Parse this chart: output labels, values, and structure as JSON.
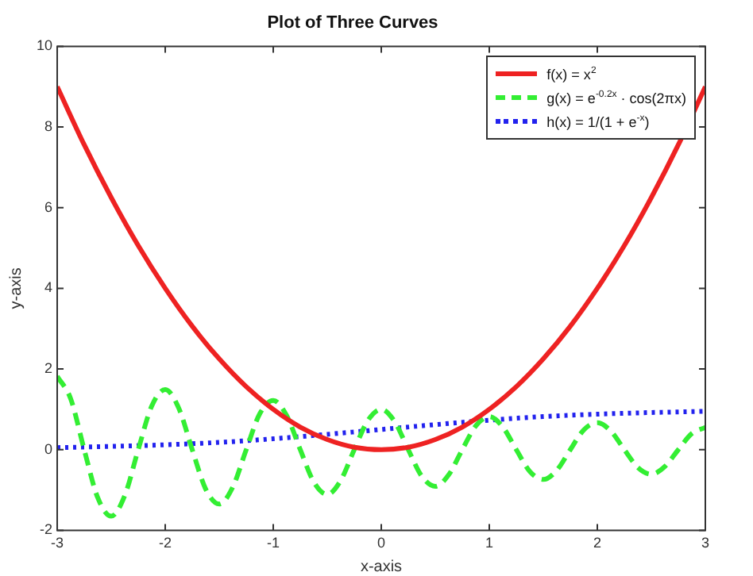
{
  "chart_data": {
    "type": "line",
    "title": "Plot of Three Curves",
    "xlabel": "x-axis",
    "ylabel": "y-axis",
    "xlim": [
      -3,
      3
    ],
    "xticks": [
      -3,
      -2,
      -1,
      0,
      1,
      2,
      3
    ],
    "ylim": [
      -2,
      10
    ],
    "yticks": [
      -2,
      0,
      2,
      4,
      6,
      8,
      10
    ],
    "grid": false,
    "legend": "top right",
    "marker": "none",
    "series": [
      {
        "name": "f(x) = x$^{2}$",
        "color": "#ee2222",
        "line_style": "solid",
        "x": [
          -3,
          -2.75,
          -2.5,
          -2.25,
          -2,
          -1.75,
          -1.5,
          -1.25,
          -1,
          -0.75,
          -0.5,
          -0.25,
          0,
          0.25,
          0.5,
          0.75,
          1,
          1.25,
          1.5,
          1.75,
          2,
          2.25,
          2.5,
          2.75,
          3
        ],
        "values": [
          9,
          7.56,
          6.25,
          5.06,
          4,
          3.06,
          2.25,
          1.56,
          1,
          0.56,
          0.25,
          0.06,
          0,
          0.06,
          0.25,
          0.56,
          1,
          1.56,
          2.25,
          3.06,
          4,
          5.06,
          6.25,
          7.56,
          9
        ]
      },
      {
        "name": "g(x) = e$^{-0.2x}$ · cos(2πx)",
        "color": "#33ee33",
        "line_style": "dashed",
        "x": [
          -3,
          -2.875,
          -2.75,
          -2.625,
          -2.5,
          -2.375,
          -2.25,
          -2.125,
          -2,
          -1.875,
          -1.75,
          -1.625,
          -1.5,
          -1.375,
          -1.25,
          -1.125,
          -1,
          -0.875,
          -0.75,
          -0.625,
          -0.5,
          -0.375,
          -0.25,
          -0.125,
          0,
          0.125,
          0.25,
          0.375,
          0.5,
          0.625,
          0.75,
          0.875,
          1,
          1.125,
          1.25,
          1.375,
          1.5,
          1.625,
          1.75,
          1.875,
          2,
          2.125,
          2.25,
          2.375,
          2.5,
          2.625,
          2.75,
          2.875,
          3
        ],
        "values": [
          1.82,
          1.26,
          0,
          -1.19,
          -1.65,
          -1.14,
          0,
          1.08,
          1.49,
          1.03,
          0,
          -0.98,
          -1.35,
          -0.93,
          0,
          0.89,
          1.22,
          0.84,
          0,
          -0.8,
          -1.11,
          -0.76,
          0,
          0.72,
          1,
          0.69,
          0,
          -0.66,
          -0.91,
          -0.62,
          0,
          0.59,
          0.82,
          0.56,
          0,
          -0.54,
          -0.74,
          -0.51,
          0,
          0.49,
          0.67,
          0.46,
          0,
          -0.44,
          -0.61,
          -0.42,
          0,
          0.4,
          0.55
        ]
      },
      {
        "name": "h(x) = 1/(1 + e$^{-x}$)",
        "color": "#2222ee",
        "line_style": "dotted",
        "x": [
          -3,
          -2.5,
          -2,
          -1.5,
          -1,
          -0.5,
          0,
          0.5,
          1,
          1.5,
          2,
          2.5,
          3
        ],
        "values": [
          0.05,
          0.08,
          0.12,
          0.18,
          0.27,
          0.38,
          0.5,
          0.62,
          0.73,
          0.82,
          0.88,
          0.92,
          0.95
        ]
      }
    ]
  }
}
